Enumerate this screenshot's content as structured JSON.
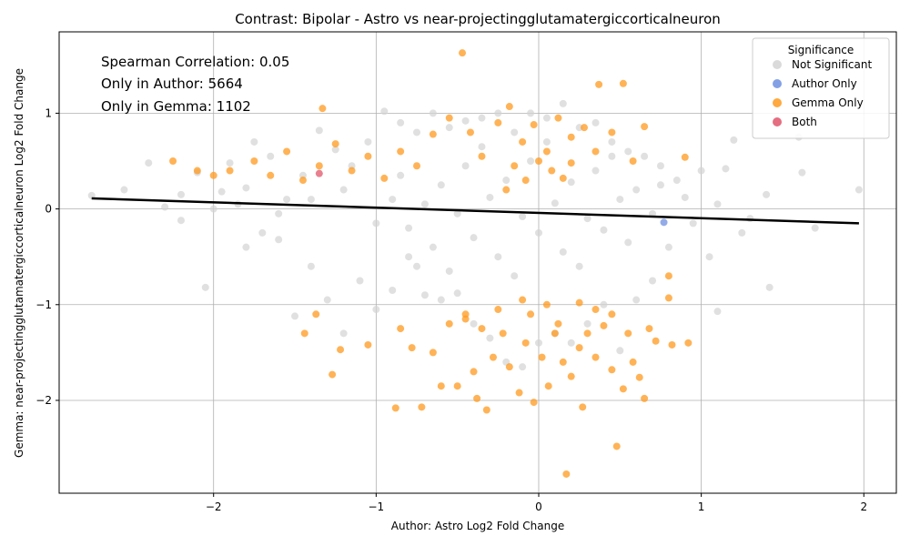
{
  "chart_data": {
    "type": "scatter",
    "title": "Contrast: Bipolar - Astro vs near-projectingglutamatergiccorticalneuron",
    "xlabel": "Author: Astro Log2 Fold Change",
    "ylabel": "Gemma: near-projectingglutamatergiccorticalneuron Log2 Fold Change",
    "xlim": [
      -2.95,
      2.2
    ],
    "ylim": [
      -2.97,
      1.85
    ],
    "xticks": [
      -2,
      -1,
      0,
      1,
      2
    ],
    "yticks": [
      -2,
      -1,
      0,
      1
    ],
    "xtick_labels": [
      "−2",
      "−1",
      "0",
      "1",
      "2"
    ],
    "ytick_labels": [
      "−2",
      "−1",
      "0",
      "1"
    ],
    "grid": true,
    "legend": {
      "title": "Significance",
      "placement": "top-right",
      "entries": [
        {
          "label": "Not Significant",
          "color": "#d3d3d3"
        },
        {
          "label": "Author Only",
          "color": "#6f8fe0"
        },
        {
          "label": "Gemma Only",
          "color": "#ff9a1f"
        },
        {
          "label": "Both",
          "color": "#e0556b"
        }
      ]
    },
    "annotations": [
      "Spearman Correlation: 0.05",
      "Only in Author: 5664",
      "Only in Gemma: 1102"
    ],
    "regression_line": {
      "x": [
        -2.75,
        1.97
      ],
      "y": [
        0.11,
        -0.15
      ],
      "color": "#000000"
    },
    "series": [
      {
        "name": "Not Significant",
        "color": "#d3d3d3",
        "points": [
          [
            -2.75,
            0.14
          ],
          [
            -2.55,
            0.2
          ],
          [
            -2.4,
            0.48
          ],
          [
            -2.3,
            0.02
          ],
          [
            -2.2,
            -0.12
          ],
          [
            -2.1,
            0.38
          ],
          [
            -2.05,
            -0.82
          ],
          [
            -1.95,
            0.18
          ],
          [
            -1.9,
            0.48
          ],
          [
            -1.85,
            0.05
          ],
          [
            -1.8,
            -0.4
          ],
          [
            -1.75,
            0.7
          ],
          [
            -1.7,
            -0.25
          ],
          [
            -1.65,
            0.55
          ],
          [
            -1.6,
            -0.32
          ],
          [
            -1.55,
            0.1
          ],
          [
            -1.5,
            -1.12
          ],
          [
            -1.45,
            0.35
          ],
          [
            -1.4,
            -0.6
          ],
          [
            -1.35,
            0.82
          ],
          [
            -1.3,
            -0.95
          ],
          [
            -1.25,
            0.62
          ],
          [
            -1.2,
            -1.3
          ],
          [
            -1.15,
            0.45
          ],
          [
            -1.1,
            -0.75
          ],
          [
            -1.05,
            0.7
          ],
          [
            -1.0,
            -1.05
          ],
          [
            -0.95,
            1.02
          ],
          [
            -0.9,
            -0.85
          ],
          [
            -0.85,
            0.9
          ],
          [
            -0.8,
            -0.5
          ],
          [
            -0.75,
            0.8
          ],
          [
            -0.7,
            -0.9
          ],
          [
            -0.65,
            1.0
          ],
          [
            -0.6,
            -0.95
          ],
          [
            -0.55,
            0.85
          ],
          [
            -0.5,
            -0.88
          ],
          [
            -0.45,
            0.92
          ],
          [
            -0.4,
            -1.2
          ],
          [
            -0.35,
            0.95
          ],
          [
            -0.3,
            -1.35
          ],
          [
            -0.25,
            1.0
          ],
          [
            -0.2,
            -1.6
          ],
          [
            -0.15,
            0.8
          ],
          [
            -0.1,
            -1.65
          ],
          [
            -0.05,
            1.0
          ],
          [
            0.0,
            -1.4
          ],
          [
            0.05,
            0.95
          ],
          [
            0.1,
            -1.3
          ],
          [
            0.15,
            1.1
          ],
          [
            0.2,
            -1.4
          ],
          [
            0.25,
            0.85
          ],
          [
            0.3,
            -1.2
          ],
          [
            0.35,
            0.9
          ],
          [
            0.4,
            -1.0
          ],
          [
            0.45,
            0.7
          ],
          [
            0.5,
            -1.48
          ],
          [
            0.55,
            0.6
          ],
          [
            0.6,
            -0.95
          ],
          [
            0.65,
            0.55
          ],
          [
            0.7,
            -0.75
          ],
          [
            0.75,
            0.45
          ],
          [
            0.8,
            -0.4
          ],
          [
            0.85,
            0.3
          ],
          [
            0.9,
            0.12
          ],
          [
            1.0,
            0.4
          ],
          [
            1.05,
            -0.5
          ],
          [
            1.1,
            -1.07
          ],
          [
            1.15,
            0.42
          ],
          [
            1.2,
            0.72
          ],
          [
            1.3,
            -0.1
          ],
          [
            1.4,
            0.15
          ],
          [
            1.42,
            -0.82
          ],
          [
            1.6,
            0.75
          ],
          [
            1.62,
            0.38
          ],
          [
            1.7,
            -0.2
          ],
          [
            1.97,
            0.2
          ],
          [
            -0.9,
            0.1
          ],
          [
            -0.7,
            0.05
          ],
          [
            -0.5,
            -0.05
          ],
          [
            -0.3,
            0.12
          ],
          [
            -0.1,
            -0.08
          ],
          [
            0.1,
            0.06
          ],
          [
            0.3,
            -0.1
          ],
          [
            0.5,
            0.1
          ],
          [
            0.7,
            -0.05
          ],
          [
            -0.8,
            -0.2
          ],
          [
            -0.6,
            0.25
          ],
          [
            -0.4,
            -0.3
          ],
          [
            -0.2,
            0.3
          ],
          [
            0.0,
            -0.25
          ],
          [
            0.2,
            0.28
          ],
          [
            0.4,
            -0.22
          ],
          [
            0.6,
            0.2
          ],
          [
            -1.2,
            0.2
          ],
          [
            -1.0,
            -0.15
          ],
          [
            -0.85,
            0.35
          ],
          [
            -0.65,
            -0.4
          ],
          [
            -0.45,
            0.45
          ],
          [
            -0.25,
            -0.5
          ],
          [
            -0.05,
            0.5
          ],
          [
            0.15,
            -0.45
          ],
          [
            0.35,
            0.4
          ],
          [
            0.55,
            -0.35
          ],
          [
            0.75,
            0.25
          ],
          [
            -1.4,
            0.1
          ],
          [
            -1.6,
            -0.05
          ],
          [
            -1.8,
            0.22
          ],
          [
            -2.0,
            0.0
          ],
          [
            -2.2,
            0.15
          ],
          [
            0.95,
            -0.15
          ],
          [
            1.1,
            0.05
          ],
          [
            1.25,
            -0.25
          ],
          [
            -0.55,
            -0.65
          ],
          [
            -0.35,
            0.65
          ],
          [
            -0.15,
            -0.7
          ],
          [
            0.05,
            0.7
          ],
          [
            0.25,
            -0.6
          ],
          [
            0.45,
            0.55
          ],
          [
            -0.75,
            -0.6
          ]
        ]
      },
      {
        "name": "Author Only",
        "color": "#6f8fe0",
        "points": [
          [
            0.77,
            -0.14
          ]
        ]
      },
      {
        "name": "Gemma Only",
        "color": "#ff9a1f",
        "points": [
          [
            -2.25,
            0.5
          ],
          [
            -2.1,
            0.4
          ],
          [
            -2.0,
            0.35
          ],
          [
            -1.9,
            0.4
          ],
          [
            -1.75,
            0.5
          ],
          [
            -1.65,
            0.35
          ],
          [
            -1.55,
            0.6
          ],
          [
            -1.45,
            0.3
          ],
          [
            -1.35,
            0.45
          ],
          [
            -1.33,
            1.05
          ],
          [
            -1.25,
            0.68
          ],
          [
            -1.15,
            0.4
          ],
          [
            -1.05,
            0.55
          ],
          [
            -0.95,
            0.32
          ],
          [
            -0.85,
            0.6
          ],
          [
            -0.75,
            0.45
          ],
          [
            -0.65,
            0.78
          ],
          [
            -0.55,
            0.95
          ],
          [
            -0.47,
            1.63
          ],
          [
            -0.42,
            0.8
          ],
          [
            -0.35,
            0.55
          ],
          [
            -0.25,
            0.9
          ],
          [
            -0.18,
            1.07
          ],
          [
            -0.1,
            0.7
          ],
          [
            -0.03,
            0.88
          ],
          [
            0.05,
            0.6
          ],
          [
            0.12,
            0.95
          ],
          [
            0.2,
            0.75
          ],
          [
            0.28,
            0.85
          ],
          [
            0.35,
            0.6
          ],
          [
            0.37,
            1.3
          ],
          [
            0.45,
            0.8
          ],
          [
            0.52,
            1.31
          ],
          [
            0.58,
            0.5
          ],
          [
            0.65,
            0.86
          ],
          [
            0.9,
            0.54
          ],
          [
            -1.44,
            -1.3
          ],
          [
            -1.37,
            -1.1
          ],
          [
            -1.27,
            -1.73
          ],
          [
            -1.22,
            -1.47
          ],
          [
            -1.05,
            -1.42
          ],
          [
            -0.88,
            -2.08
          ],
          [
            -0.85,
            -1.25
          ],
          [
            -0.78,
            -1.45
          ],
          [
            -0.72,
            -2.07
          ],
          [
            -0.65,
            -1.5
          ],
          [
            -0.6,
            -1.85
          ],
          [
            -0.55,
            -1.2
          ],
          [
            -0.5,
            -1.85
          ],
          [
            -0.45,
            -1.1
          ],
          [
            -0.4,
            -1.7
          ],
          [
            -0.38,
            -1.98
          ],
          [
            -0.32,
            -2.1
          ],
          [
            -0.28,
            -1.55
          ],
          [
            -0.22,
            -1.3
          ],
          [
            -0.18,
            -1.65
          ],
          [
            -0.12,
            -1.92
          ],
          [
            -0.08,
            -1.4
          ],
          [
            -0.03,
            -2.02
          ],
          [
            0.02,
            -1.55
          ],
          [
            0.06,
            -1.85
          ],
          [
            0.1,
            -1.3
          ],
          [
            0.15,
            -1.6
          ],
          [
            0.17,
            -2.77
          ],
          [
            0.2,
            -1.75
          ],
          [
            0.25,
            -1.45
          ],
          [
            0.27,
            -2.07
          ],
          [
            0.3,
            -1.3
          ],
          [
            0.35,
            -1.55
          ],
          [
            0.4,
            -1.22
          ],
          [
            0.45,
            -1.68
          ],
          [
            0.48,
            -2.48
          ],
          [
            0.52,
            -1.88
          ],
          [
            0.55,
            -1.3
          ],
          [
            0.58,
            -1.6
          ],
          [
            0.62,
            -1.76
          ],
          [
            0.65,
            -1.98
          ],
          [
            0.68,
            -1.25
          ],
          [
            0.72,
            -1.38
          ],
          [
            0.8,
            -0.93
          ],
          [
            0.82,
            -1.42
          ],
          [
            0.92,
            -1.4
          ],
          [
            0.8,
            -0.7
          ],
          [
            -0.15,
            0.45
          ],
          [
            -0.08,
            0.3
          ],
          [
            0.0,
            0.5
          ],
          [
            0.08,
            0.4
          ],
          [
            0.15,
            0.32
          ],
          [
            -0.2,
            0.2
          ],
          [
            0.2,
            0.48
          ],
          [
            -0.1,
            -0.95
          ],
          [
            -0.05,
            -1.1
          ],
          [
            0.05,
            -1.0
          ],
          [
            0.12,
            -1.2
          ],
          [
            -0.25,
            -1.05
          ],
          [
            0.25,
            -0.98
          ],
          [
            -0.35,
            -1.25
          ],
          [
            0.35,
            -1.05
          ],
          [
            -0.45,
            -1.15
          ],
          [
            0.45,
            -1.1
          ]
        ]
      },
      {
        "name": "Both",
        "color": "#e0556b",
        "points": [
          [
            -1.35,
            0.37
          ]
        ]
      }
    ]
  }
}
